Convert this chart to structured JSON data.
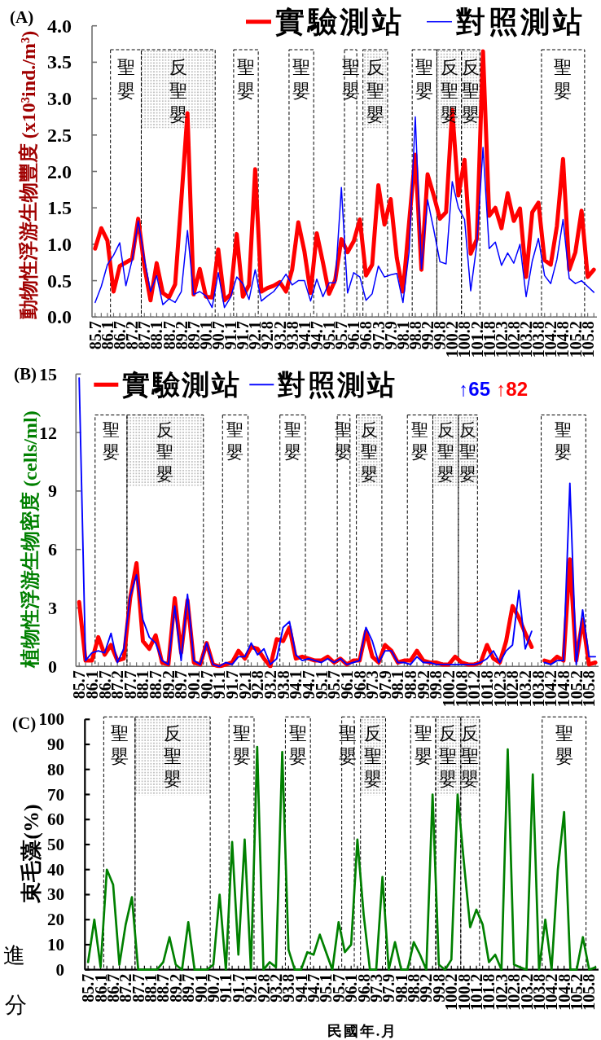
{
  "chart_data": [
    {
      "type": "line",
      "title": "(A)",
      "ylabel": "動物性浮游生物豐度 (x10³ind./m³)",
      "categories": [
        "85.7",
        null,
        "86.1",
        null,
        "86.7",
        null,
        "87.2",
        null,
        "87.7",
        null,
        "88.1",
        null,
        "88.7",
        null,
        "89.2",
        null,
        "89.7",
        null,
        "90.1",
        null,
        "90.7",
        null,
        "91.1",
        null,
        "91.7",
        null,
        "92.1",
        null,
        "92.8",
        null,
        "93.2",
        null,
        "93.8",
        null,
        "94.1",
        null,
        "94.7",
        null,
        "95.1",
        null,
        "95.7",
        null,
        "96.1",
        null,
        "96.8",
        null,
        "97.3",
        null,
        "97.9",
        null,
        "98.1",
        null,
        "98.8",
        null,
        "99.2",
        null,
        "99.8",
        null,
        "100.2",
        null,
        "100.8",
        null,
        "101.2",
        null,
        "101.8",
        null,
        "102.3",
        null,
        "102.8",
        null,
        "103.2",
        null,
        "103.8",
        null,
        "104.2",
        null,
        "104.8",
        null,
        "105.2",
        null,
        "105.8",
        null
      ],
      "ylim": [
        0,
        4
      ],
      "yticks": [
        {
          "value": 0,
          "label": "0.0"
        },
        0.5,
        {
          "value": 1,
          "label": "1.0"
        },
        1.5,
        {
          "value": 2,
          "label": "2.0"
        },
        2.5,
        {
          "value": 3,
          "label": "3.0"
        },
        3.5,
        {
          "value": 4,
          "label": "4.0"
        }
      ],
      "series": [
        {
          "name": "實驗測站",
          "color": "#ff0000",
          "values": [
            0.94,
            1.22,
            1.05,
            0.35,
            0.7,
            0.75,
            0.8,
            1.35,
            0.7,
            0.23,
            0.74,
            0.33,
            0.27,
            0.45,
            1.6,
            2.8,
            0.31,
            0.66,
            0.28,
            0.27,
            0.93,
            0.23,
            0.31,
            1.14,
            0.28,
            0.44,
            2.03,
            0.35,
            0.4,
            0.43,
            0.48,
            0.35,
            0.65,
            1.3,
            0.9,
            0.33,
            1.15,
            0.75,
            0.32,
            0.51,
            1.07,
            0.89,
            1.04,
            1.34,
            0.57,
            0.72,
            1.81,
            1.27,
            1.62,
            0.81,
            0.35,
            1.3,
            2.23,
            0.65,
            1.96,
            1.67,
            1.35,
            1.44,
            2.85,
            1.67,
            2.16,
            0.87,
            1.07,
            3.65,
            1.39,
            1.5,
            1.22,
            1.7,
            1.32,
            1.49,
            0.55,
            1.44,
            1.57,
            0.78,
            0.72,
            1.25,
            2.17,
            0.65,
            0.89,
            1.46,
            0.55,
            0.65
          ]
        },
        {
          "name": "對照測站",
          "color": "#0000ff",
          "values": [
            0.2,
            0.42,
            0.72,
            0.85,
            1.02,
            0.43,
            0.78,
            1.32,
            0.8,
            0.35,
            0.57,
            0.17,
            0.25,
            0.2,
            0.35,
            1.19,
            0.31,
            0.35,
            0.29,
            0.13,
            0.61,
            0.13,
            0.27,
            0.55,
            0.46,
            0.24,
            0.65,
            0.22,
            0.29,
            0.35,
            0.46,
            0.59,
            0.44,
            0.5,
            0.5,
            0.22,
            0.52,
            0.28,
            0.47,
            0.47,
            1.78,
            0.33,
            0.61,
            0.55,
            0.23,
            0.32,
            0.7,
            0.55,
            0.58,
            0.6,
            0.2,
            0.9,
            2.75,
            0.66,
            1.61,
            1.2,
            0.76,
            0.73,
            1.86,
            1.5,
            1.34,
            0.36,
            1.0,
            2.33,
            0.94,
            1.03,
            0.71,
            0.88,
            0.74,
            1.0,
            0.28,
            0.77,
            1.08,
            0.57,
            0.46,
            0.79,
            1.34,
            0.53,
            0.46,
            0.5,
            0.42,
            0.34
          ]
        }
      ],
      "annotations": [
        "聖嬰",
        "反聖嬰",
        "聖嬰",
        "聖嬰",
        "聖嬰",
        "反聖嬰",
        "聖嬰",
        "反聖嬰",
        "反聖嬰",
        "聖嬰"
      ],
      "legend": "top right"
    },
    {
      "type": "line",
      "title": "(B)",
      "ylabel": "植物性浮游生物密度 (cells/ml)",
      "categories": [
        "85.7",
        null,
        "86.1",
        null,
        "86.7",
        null,
        "87.2",
        null,
        "87.7",
        null,
        "88.1",
        null,
        "88.7",
        null,
        "89.2",
        null,
        "89.7",
        null,
        "90.1",
        null,
        "90.7",
        null,
        "91.1",
        null,
        "91.7",
        null,
        "92.1",
        null,
        "92.8",
        null,
        "93.2",
        null,
        "93.8",
        null,
        "94.1",
        null,
        "94.7",
        null,
        "95.1",
        null,
        "95.7",
        null,
        "96.1",
        null,
        "96.8",
        null,
        "97.3",
        null,
        "97.9",
        null,
        "98.1",
        null,
        "98.8",
        null,
        "99.2",
        null,
        "99.8",
        null,
        "100.2",
        null,
        "100.8",
        null,
        "101.2",
        null,
        "101.8",
        null,
        "102.3",
        null,
        "102.8",
        null,
        "103.2",
        null,
        "103.8",
        null,
        "104.2",
        null,
        "104.8",
        null,
        "105.2",
        null,
        "105.8",
        null
      ],
      "ylim": [
        0,
        15
      ],
      "yticks": [
        0,
        3,
        6,
        9,
        12,
        15
      ],
      "series": [
        {
          "name": "實驗測站",
          "color": "#ff0000",
          "values": [
            3.3,
            0.3,
            0.3,
            1.5,
            0.6,
            1.1,
            0.3,
            0.4,
            3.5,
            5.3,
            1.3,
            0.9,
            1.6,
            0.2,
            0.1,
            3.5,
            0.7,
            3.4,
            0.2,
            0.1,
            1.2,
            0.1,
            0,
            0.1,
            0.2,
            0.8,
            0.4,
            1.0,
            0.9,
            0.4,
            0,
            1.4,
            1.3,
            2.0,
            0.4,
            0.5,
            0.4,
            0.3,
            0.3,
            0.5,
            0.2,
            0.4,
            0.1,
            0.3,
            0.3,
            1.8,
            0.5,
            0.2,
            1.1,
            0.8,
            0.2,
            0.3,
            0.3,
            0.8,
            0.3,
            0.2,
            0.2,
            0.1,
            0.1,
            0.5,
            0.2,
            0.1,
            0.1,
            0.2,
            1.1,
            0.4,
            0.2,
            1.3,
            3.1,
            2.5,
            1.7,
            1.0,
            null,
            0.3,
            0.2,
            0.5,
            0.3,
            5.5,
            0.3,
            2.4,
            0.1,
            0.2
          ]
        },
        {
          "name": "對照測站",
          "color": "#0000ff",
          "values": [
            14.8,
            0.3,
            0.7,
            0.8,
            0.7,
            1.7,
            0.2,
            0.9,
            3.6,
            4.7,
            2.4,
            1.5,
            1.2,
            0.3,
            0.1,
            3.1,
            0.3,
            3.7,
            0.3,
            0.1,
            1.2,
            0.1,
            0,
            0.2,
            0.1,
            0.5,
            0.5,
            1.2,
            0.6,
            0.9,
            0.1,
            0.4,
            2.0,
            2.3,
            0.6,
            0.3,
            0.4,
            0.3,
            0.2,
            0.4,
            0.2,
            0.4,
            0.1,
            0.2,
            0.3,
            2.0,
            1.3,
            0.2,
            0.8,
            0.8,
            0.2,
            0.2,
            0.1,
            0.5,
            0.2,
            0.2,
            0.1,
            0.1,
            0.1,
            0.1,
            0.1,
            0.1,
            0.1,
            0.2,
            0.4,
            0.8,
            0.2,
            0.8,
            1.1,
            3.9,
            0.9,
            1.8,
            null,
            0.2,
            0.1,
            0.3,
            0.3,
            9.4,
            0.1,
            2.9,
            0.5,
            0.5
          ]
        }
      ],
      "annotations": [
        "聖嬰",
        "反聖嬰",
        "聖嬰",
        "聖嬰",
        "聖嬰",
        "反聖嬰",
        "聖嬰",
        "反聖嬰",
        "反聖嬰",
        "聖嬰",
        "↑65",
        "↑82"
      ],
      "legend": "top left"
    },
    {
      "type": "line",
      "title": "(C)",
      "ylabel": "束毛藻(%)",
      "xlabel": "民國年.月",
      "categories": [
        "85.7",
        null,
        "86.1",
        null,
        "86.7",
        null,
        "87.2",
        null,
        "87.7",
        null,
        "88.1",
        null,
        "88.7",
        null,
        "89.2",
        null,
        "89.7",
        null,
        "90.1",
        null,
        "90.7",
        null,
        "91.1",
        null,
        "91.7",
        null,
        "92.1",
        null,
        "92.8",
        null,
        "93.2",
        null,
        "93.8",
        null,
        "94.1",
        null,
        "94.7",
        null,
        "95.1",
        null,
        "95.7",
        null,
        "96.1",
        null,
        "96.8",
        null,
        "97.3",
        null,
        "97.9",
        null,
        "98.1",
        null,
        "98.8",
        null,
        "99.2",
        null,
        "99.8",
        null,
        "100.2",
        null,
        "100.8",
        null,
        "101.2",
        null,
        "101.8",
        null,
        "102.3",
        null,
        "102.8",
        null,
        "103.2",
        null,
        "103.8",
        null,
        "104.2",
        null,
        "104.8",
        null,
        "105.2",
        null,
        "105.8",
        null
      ],
      "ylim": [
        0,
        100
      ],
      "yticks": [
        0,
        10,
        20,
        30,
        40,
        50,
        60,
        70,
        80,
        90,
        100
      ],
      "series": [
        {
          "color": "#008000",
          "values": [
            3,
            20,
            1,
            40,
            34,
            2,
            18,
            29,
            0,
            0,
            0,
            0,
            3,
            13,
            2,
            0,
            19,
            0,
            0,
            0,
            2,
            30,
            0,
            51,
            6,
            52,
            0,
            89,
            0,
            3,
            1,
            87,
            8,
            0,
            0,
            7,
            6,
            14,
            7,
            0,
            19,
            7,
            10,
            52,
            22,
            0,
            0,
            37,
            0,
            11,
            0,
            0,
            11,
            6,
            0,
            70,
            2,
            0,
            4,
            70,
            43,
            17,
            24,
            18,
            3,
            6,
            0,
            88,
            2,
            1,
            0,
            78,
            0,
            20,
            0,
            40,
            63,
            0,
            0,
            13,
            0,
            1
          ]
        }
      ],
      "annotations": [
        "聖嬰",
        "反聖嬰",
        "聖嬰",
        "聖嬰",
        "聖嬰",
        "反聖嬰",
        "聖嬰",
        "反聖嬰",
        "反聖嬰",
        "聖嬰",
        "進",
        "分"
      ]
    }
  ]
}
